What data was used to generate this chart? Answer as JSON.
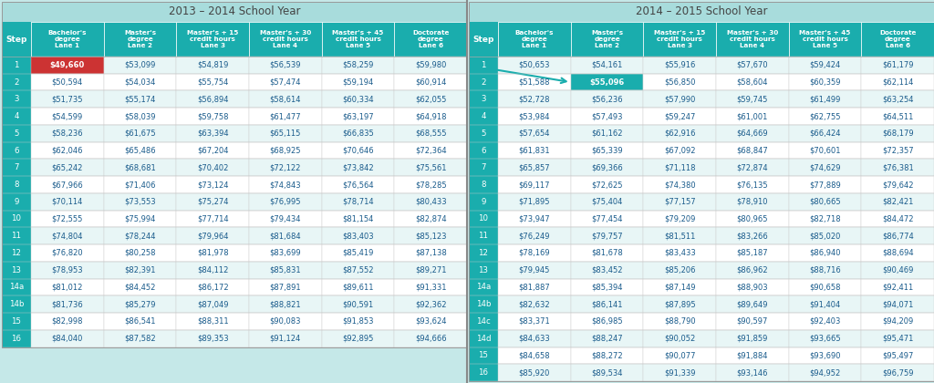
{
  "title_left": "2013 – 2014 School Year",
  "title_right": "2014 – 2015 School Year",
  "col_headers": [
    "Bachelor's\ndegree\nLane 1",
    "Master's\ndegree\nLane 2",
    "Master's + 15\ncredit hours\nLane 3",
    "Master's + 30\ncredit hours\nLane 4",
    "Master's + 45\ncredit hours\nLane 5",
    "Doctorate\ndegree\nLane 6"
  ],
  "steps_left": [
    "1",
    "2",
    "3",
    "4",
    "5",
    "6",
    "7",
    "8",
    "9",
    "10",
    "11",
    "12",
    "13",
    "14a",
    "14b",
    "15",
    "16"
  ],
  "steps_right": [
    "1",
    "2",
    "3",
    "4",
    "5",
    "6",
    "7",
    "8",
    "9",
    "10",
    "11",
    "12",
    "13",
    "14a",
    "14b",
    "14c",
    "14d",
    "15",
    "16"
  ],
  "data_left": [
    [
      "$49,660",
      "$53,099",
      "$54,819",
      "$56,539",
      "$58,259",
      "$59,980"
    ],
    [
      "$50,594",
      "$54,034",
      "$55,754",
      "$57,474",
      "$59,194",
      "$60,914"
    ],
    [
      "$51,735",
      "$55,174",
      "$56,894",
      "$58,614",
      "$60,334",
      "$62,055"
    ],
    [
      "$54,599",
      "$58,039",
      "$59,758",
      "$61,477",
      "$63,197",
      "$64,918"
    ],
    [
      "$58,236",
      "$61,675",
      "$63,394",
      "$65,115",
      "$66,835",
      "$68,555"
    ],
    [
      "$62,046",
      "$65,486",
      "$67,204",
      "$68,925",
      "$70,646",
      "$72,364"
    ],
    [
      "$65,242",
      "$68,681",
      "$70,402",
      "$72,122",
      "$73,842",
      "$75,561"
    ],
    [
      "$67,966",
      "$71,406",
      "$73,124",
      "$74,843",
      "$76,564",
      "$78,285"
    ],
    [
      "$70,114",
      "$73,553",
      "$75,274",
      "$76,995",
      "$78,714",
      "$80,433"
    ],
    [
      "$72,555",
      "$75,994",
      "$77,714",
      "$79,434",
      "$81,154",
      "$82,874"
    ],
    [
      "$74,804",
      "$78,244",
      "$79,964",
      "$81,684",
      "$83,403",
      "$85,123"
    ],
    [
      "$76,820",
      "$80,258",
      "$81,978",
      "$83,699",
      "$85,419",
      "$87,138"
    ],
    [
      "$78,953",
      "$82,391",
      "$84,112",
      "$85,831",
      "$87,552",
      "$89,271"
    ],
    [
      "$81,012",
      "$84,452",
      "$86,172",
      "$87,891",
      "$89,611",
      "$91,331"
    ],
    [
      "$81,736",
      "$85,279",
      "$87,049",
      "$88,821",
      "$90,591",
      "$92,362"
    ],
    [
      "$82,998",
      "$86,541",
      "$88,311",
      "$90,083",
      "$91,853",
      "$93,624"
    ],
    [
      "$84,040",
      "$87,582",
      "$89,353",
      "$91,124",
      "$92,895",
      "$94,666"
    ]
  ],
  "data_right": [
    [
      "$50,653",
      "$54,161",
      "$55,916",
      "$57,670",
      "$59,424",
      "$61,179"
    ],
    [
      "$51,588",
      "$55,096",
      "$56,850",
      "$58,604",
      "$60,359",
      "$62,114"
    ],
    [
      "$52,728",
      "$56,236",
      "$57,990",
      "$59,745",
      "$61,499",
      "$63,254"
    ],
    [
      "$53,984",
      "$57,493",
      "$59,247",
      "$61,001",
      "$62,755",
      "$64,511"
    ],
    [
      "$57,654",
      "$61,162",
      "$62,916",
      "$64,669",
      "$66,424",
      "$68,179"
    ],
    [
      "$61,831",
      "$65,339",
      "$67,092",
      "$68,847",
      "$70,601",
      "$72,357"
    ],
    [
      "$65,857",
      "$69,366",
      "$71,118",
      "$72,874",
      "$74,629",
      "$76,381"
    ],
    [
      "$69,117",
      "$72,625",
      "$74,380",
      "$76,135",
      "$77,889",
      "$79,642"
    ],
    [
      "$71,895",
      "$75,404",
      "$77,157",
      "$78,910",
      "$80,665",
      "$82,421"
    ],
    [
      "$73,947",
      "$77,454",
      "$79,209",
      "$80,965",
      "$82,718",
      "$84,472"
    ],
    [
      "$76,249",
      "$79,757",
      "$81,511",
      "$83,266",
      "$85,020",
      "$86,774"
    ],
    [
      "$78,169",
      "$81,678",
      "$83,433",
      "$85,187",
      "$86,940",
      "$88,694"
    ],
    [
      "$79,945",
      "$83,452",
      "$85,206",
      "$86,962",
      "$88,716",
      "$90,469"
    ],
    [
      "$81,887",
      "$85,394",
      "$87,149",
      "$88,903",
      "$90,658",
      "$92,411"
    ],
    [
      "$82,632",
      "$86,141",
      "$87,895",
      "$89,649",
      "$91,404",
      "$94,071"
    ],
    [
      "$83,371",
      "$86,985",
      "$88,790",
      "$90,597",
      "$92,403",
      "$94,209"
    ],
    [
      "$84,633",
      "$88,247",
      "$90,052",
      "$91,859",
      "$93,665",
      "$95,471"
    ],
    [
      "$84,658",
      "$88,272",
      "$90,077",
      "$91,884",
      "$93,690",
      "$95,497"
    ],
    [
      "$85,920",
      "$89,534",
      "$91,339",
      "$93,146",
      "$94,952",
      "$96,759"
    ]
  ],
  "bg_color": "#C5E8E8",
  "color_title_bg": "#A8DCDC",
  "color_header_bg": "#1AADAD",
  "color_step_bg": "#1AADAD",
  "color_row_even": "#E8F6F6",
  "color_row_odd": "#FFFFFF",
  "color_highlight_red": "#CC3333",
  "color_highlight_teal": "#1AADAD",
  "color_header_text": "#FFFFFF",
  "color_data_text": "#1A5C8C",
  "color_step_text": "#FFFFFF",
  "color_title_text": "#444444",
  "color_grid": "#AAAAAA",
  "color_divider": "#888888"
}
